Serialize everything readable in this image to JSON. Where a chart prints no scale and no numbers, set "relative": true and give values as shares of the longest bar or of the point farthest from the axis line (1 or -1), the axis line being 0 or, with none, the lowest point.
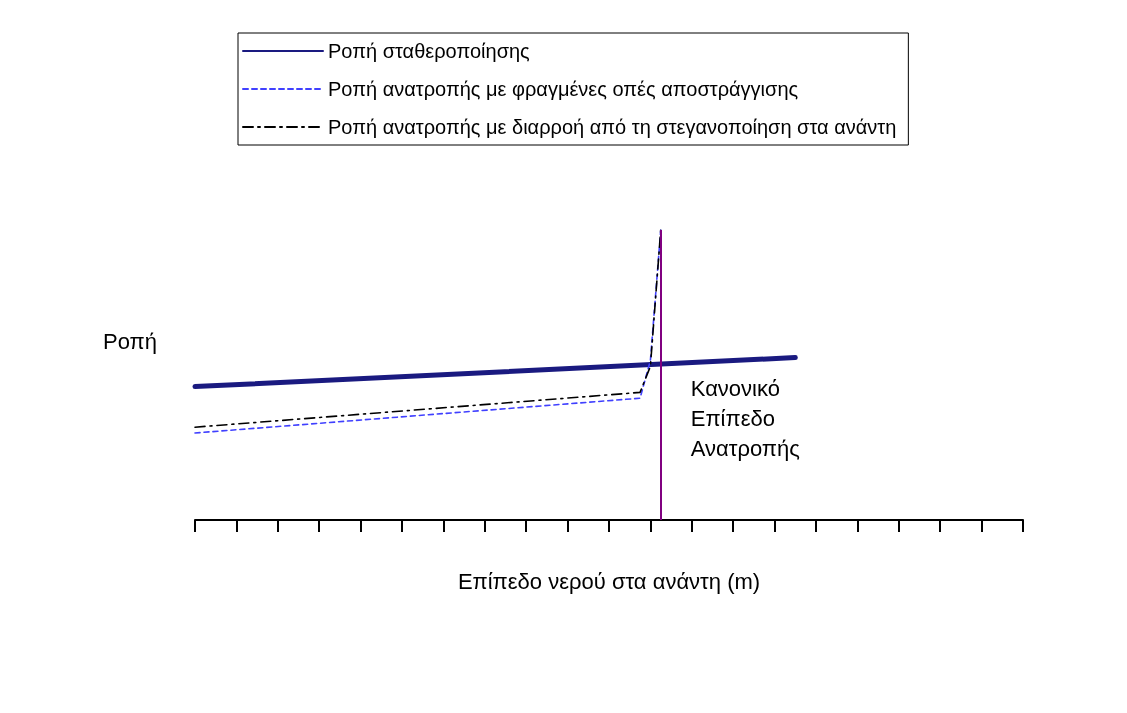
{
  "chart_data": {
    "type": "line",
    "relative": true,
    "xlabel": "Επίπεδο νερού στα ανάντη (m)",
    "ylabel": "Ροπή",
    "categories": [
      null,
      null,
      null,
      null,
      null,
      null,
      null,
      null,
      null,
      null,
      null,
      null,
      null,
      null,
      null,
      null,
      null,
      null,
      null,
      null,
      null,
      null,
      null,
      null,
      null,
      null,
      null,
      null,
      null,
      null,
      null,
      null,
      null,
      null,
      null,
      null,
      null,
      null,
      null,
      null,
      null,
      null,
      null,
      null,
      null,
      null,
      null,
      null,
      null,
      null,
      null,
      null,
      null,
      null,
      null,
      null,
      null,
      null,
      null,
      null,
      null,
      null,
      null,
      null,
      null,
      null,
      null,
      null,
      null,
      null,
      null,
      null,
      null,
      null,
      null,
      null,
      null,
      null,
      null,
      null,
      null
    ],
    "grid": false,
    "legend": "top",
    "marker": "none",
    "series": [
      {
        "name": "Ροπή σταθεροποίησης",
        "color": "#1a1a80",
        "line_style": "solid",
        "values": [
          0.46,
          null,
          null,
          null,
          null,
          null,
          null,
          null,
          null,
          null,
          null,
          null,
          null,
          null,
          null,
          null,
          null,
          null,
          null,
          null,
          null,
          null,
          null,
          null,
          null,
          null,
          null,
          null,
          null,
          null,
          null,
          null,
          null,
          null,
          null,
          null,
          null,
          null,
          null,
          null,
          null,
          null,
          null,
          null,
          null,
          null,
          null,
          null,
          null,
          null,
          null,
          null,
          null,
          null,
          null,
          null,
          null,
          null,
          0.56,
          null,
          null,
          null,
          null,
          null,
          null,
          null,
          null,
          null,
          null,
          null,
          null,
          null,
          null,
          null,
          null,
          null,
          null,
          null,
          null,
          null,
          null
        ]
      },
      {
        "name": "Ροπή ανατροπής με φραγμένες οπές αποστράγγισης",
        "color": "#4040ff",
        "line_style": "dashed",
        "values": [
          0.3,
          null,
          null,
          null,
          null,
          null,
          null,
          null,
          null,
          null,
          null,
          null,
          null,
          null,
          null,
          null,
          null,
          null,
          null,
          null,
          null,
          null,
          null,
          null,
          null,
          null,
          null,
          null,
          null,
          null,
          null,
          null,
          null,
          null,
          null,
          null,
          null,
          null,
          null,
          null,
          null,
          null,
          null,
          0.42,
          0.55,
          1,
          null,
          null,
          null,
          null,
          null,
          null,
          null,
          null,
          null,
          null,
          null,
          null,
          null,
          null,
          null,
          null,
          null,
          null,
          null,
          null,
          null,
          null,
          null,
          null,
          null,
          null,
          null,
          null,
          null,
          null,
          null,
          null,
          null,
          null,
          null
        ]
      },
      {
        "name": "Ροπή ανατροπής με διαρροή από τη στεγανοποίηση στα ανάντη",
        "color": "#000000",
        "line_style": "dashed",
        "values": [
          0.32,
          null,
          null,
          null,
          null,
          null,
          null,
          null,
          null,
          null,
          null,
          null,
          null,
          null,
          null,
          null,
          null,
          null,
          null,
          null,
          null,
          null,
          null,
          null,
          null,
          null,
          null,
          null,
          null,
          null,
          null,
          null,
          null,
          null,
          null,
          null,
          null,
          null,
          null,
          null,
          null,
          null,
          null,
          0.44,
          0.53,
          1,
          null,
          null,
          null,
          null,
          null,
          null,
          null,
          null,
          null,
          null,
          null,
          null,
          null,
          null,
          null,
          null,
          null,
          null,
          null,
          null,
          null,
          null,
          null,
          null,
          null,
          null,
          null,
          null,
          null,
          null,
          null,
          null,
          null,
          null,
          null
        ]
      }
    ],
    "annotations": [
      "Κανονικό Επίπεδο Ανατροπής"
    ]
  }
}
